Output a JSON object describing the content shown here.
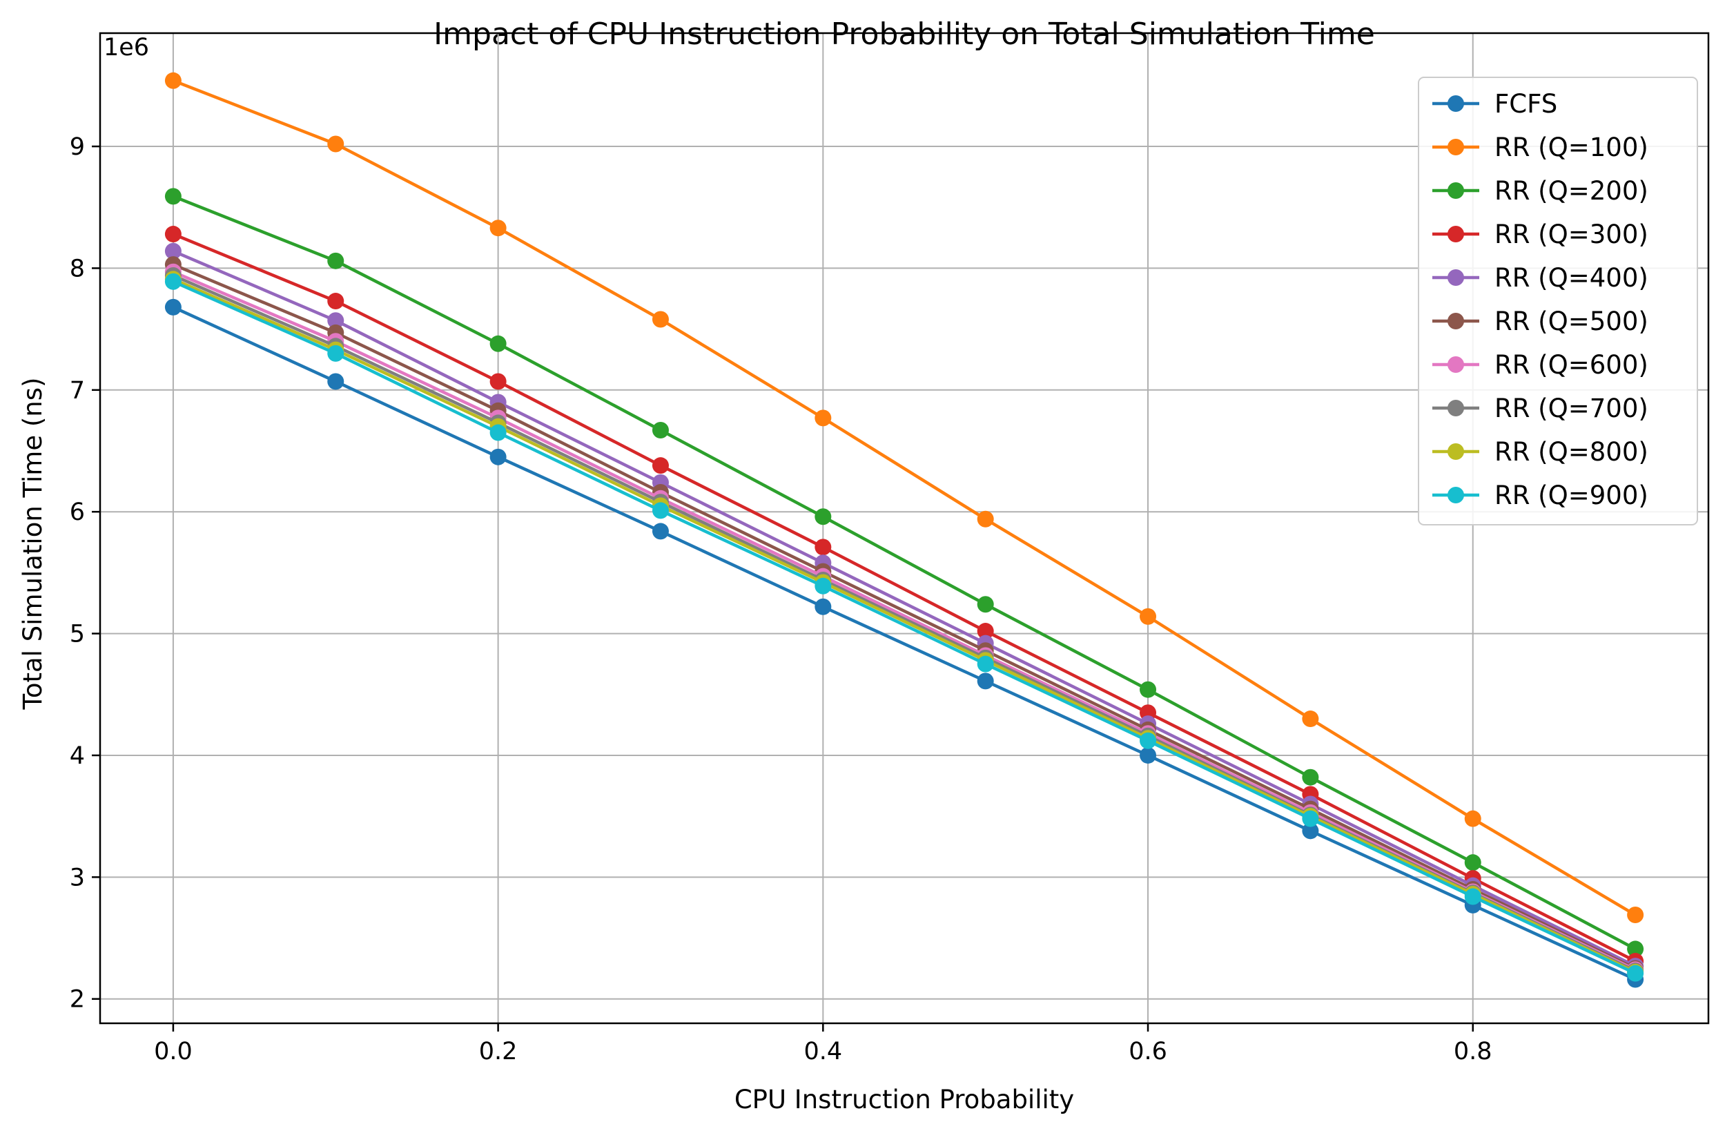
{
  "chart_data": {
    "type": "line",
    "title": "Impact of CPU Instruction Probability on Total Simulation Time",
    "xlabel": "CPU Instruction Probability",
    "ylabel": "Total Simulation Time (ns)",
    "y_offset_label": "1e6",
    "y_scale": 1000000,
    "xlim": [
      -0.045,
      0.945
    ],
    "ylim": [
      1.8,
      9.93
    ],
    "x_ticks": [
      0.0,
      0.2,
      0.4,
      0.6,
      0.8
    ],
    "x_tick_labels": [
      "0.0",
      "0.2",
      "0.4",
      "0.6",
      "0.8"
    ],
    "y_ticks": [
      2,
      3,
      4,
      5,
      6,
      7,
      8,
      9
    ],
    "y_tick_labels": [
      "2",
      "3",
      "4",
      "5",
      "6",
      "7",
      "8",
      "9"
    ],
    "grid": true,
    "legend_position": "top-right",
    "x": [
      0.0,
      0.1,
      0.2,
      0.3,
      0.4,
      0.5,
      0.6,
      0.7,
      0.8,
      0.9
    ],
    "series": [
      {
        "name": "FCFS",
        "color": "#1f77b4",
        "values": [
          7.68,
          7.07,
          6.45,
          5.84,
          5.22,
          4.61,
          4.0,
          3.38,
          2.77,
          2.16
        ]
      },
      {
        "name": "RR (Q=100)",
        "color": "#ff7f0e",
        "values": [
          9.54,
          9.02,
          8.33,
          7.58,
          6.77,
          5.94,
          5.14,
          4.3,
          3.48,
          2.69
        ]
      },
      {
        "name": "RR (Q=200)",
        "color": "#2ca02c",
        "values": [
          8.59,
          8.06,
          7.38,
          6.67,
          5.96,
          5.24,
          4.54,
          3.82,
          3.12,
          2.41
        ]
      },
      {
        "name": "RR (Q=300)",
        "color": "#d62728",
        "values": [
          8.28,
          7.73,
          7.07,
          6.38,
          5.71,
          5.02,
          4.35,
          3.68,
          2.99,
          2.31
        ]
      },
      {
        "name": "RR (Q=400)",
        "color": "#9467bd",
        "values": [
          8.14,
          7.57,
          6.9,
          6.24,
          5.58,
          4.92,
          4.26,
          3.6,
          2.93,
          2.27
        ]
      },
      {
        "name": "RR (Q=500)",
        "color": "#8c564b",
        "values": [
          8.03,
          7.47,
          6.83,
          6.16,
          5.51,
          4.86,
          4.21,
          3.56,
          2.9,
          2.25
        ]
      },
      {
        "name": "RR (Q=600)",
        "color": "#e377c2",
        "values": [
          7.97,
          7.4,
          6.77,
          6.11,
          5.47,
          4.82,
          4.18,
          3.53,
          2.88,
          2.24
        ]
      },
      {
        "name": "RR (Q=700)",
        "color": "#7f7f7f",
        "values": [
          7.94,
          7.36,
          6.73,
          6.08,
          5.44,
          4.8,
          4.16,
          3.51,
          2.87,
          2.23
        ]
      },
      {
        "name": "RR (Q=800)",
        "color": "#bcbd22",
        "values": [
          7.91,
          7.33,
          6.7,
          6.05,
          5.42,
          4.78,
          4.14,
          3.5,
          2.86,
          2.22
        ]
      },
      {
        "name": "RR (Q=900)",
        "color": "#17becf",
        "values": [
          7.89,
          7.3,
          6.65,
          6.01,
          5.39,
          4.75,
          4.12,
          3.48,
          2.84,
          2.21
        ]
      }
    ]
  }
}
